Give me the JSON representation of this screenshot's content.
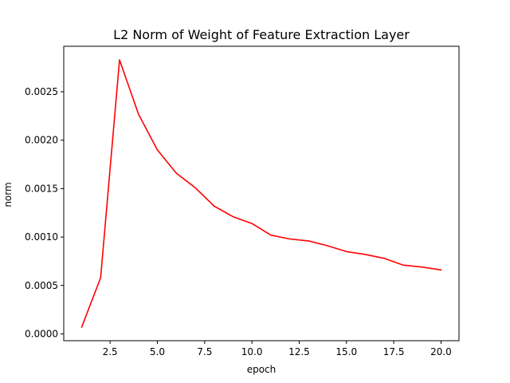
{
  "chart_data": {
    "type": "line",
    "title": "L2 Norm of Weight of Feature Extraction Layer",
    "xlabel": "epoch",
    "ylabel": "norm",
    "xlim": [
      0.05,
      20.95
    ],
    "ylim": [
      -7.05e-05,
      0.00297
    ],
    "xticks": [
      2.5,
      5.0,
      7.5,
      10.0,
      12.5,
      15.0,
      17.5,
      20.0
    ],
    "xtick_labels": [
      "2.5",
      "5.0",
      "7.5",
      "10.0",
      "12.5",
      "15.0",
      "17.5",
      "20.0"
    ],
    "yticks": [
      0.0,
      0.0005,
      0.001,
      0.0015,
      0.002,
      0.0025
    ],
    "ytick_labels": [
      "0.0000",
      "0.0005",
      "0.0010",
      "0.0015",
      "0.0020",
      "0.0025"
    ],
    "grid": false,
    "colors": {
      "line": "#ff0000"
    },
    "series": [
      {
        "x": [
          1,
          2,
          3,
          4,
          5,
          6,
          7,
          8,
          9,
          10,
          11,
          12,
          13,
          14,
          15,
          16,
          17,
          18,
          19,
          20
        ],
        "values": [
          7e-05,
          0.00058,
          0.00283,
          0.00227,
          0.0019,
          0.00166,
          0.00151,
          0.00132,
          0.00121,
          0.00114,
          0.00102,
          0.00098,
          0.00096,
          0.00091,
          0.00085,
          0.00082,
          0.00078,
          0.00071,
          0.00069,
          0.00066
        ]
      }
    ]
  }
}
